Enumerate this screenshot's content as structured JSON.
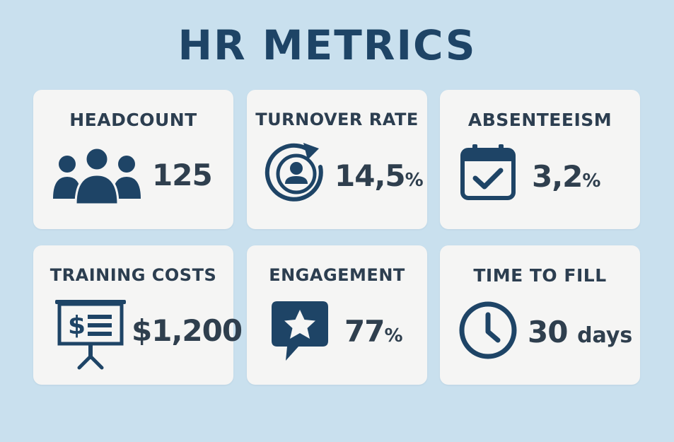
{
  "title": "HR METRICS",
  "colors": {
    "background": "#c9e0ee",
    "card": "#f5f5f4",
    "icon": "#1e4466",
    "title": "#1e4466",
    "text": "#2c3e50"
  },
  "cards": [
    {
      "label": "HEADCOUNT",
      "value": "125",
      "unit": "",
      "icon": "people-group-icon"
    },
    {
      "label": "TURNOVER RATE",
      "value": "14,5",
      "unit": "%",
      "icon": "person-rotation-icon"
    },
    {
      "label": "ABSENTEEISM",
      "value": "3,2",
      "unit": "%",
      "icon": "calendar-check-icon"
    },
    {
      "label": "TRAINING COSTS",
      "value": "$1,200",
      "unit": "",
      "icon": "presentation-board-icon"
    },
    {
      "label": "ENGAGEMENT",
      "value": "77",
      "unit": "%",
      "icon": "star-speech-bubble-icon"
    },
    {
      "label": "TIME TO FILL",
      "value": "30",
      "unit": "days",
      "icon": "clock-icon"
    }
  ]
}
